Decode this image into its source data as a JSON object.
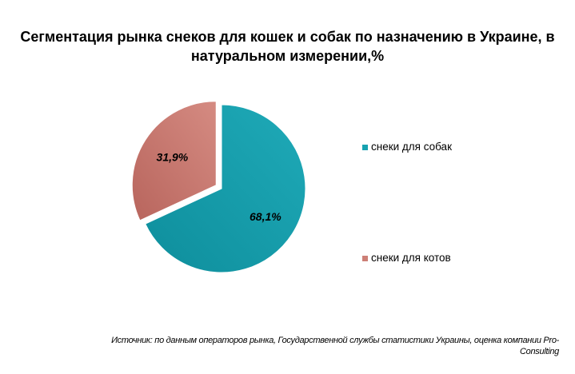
{
  "chart_data": {
    "type": "pie",
    "title_lines": [
      "Сегментация рынка снеков для кошек и собак по назначению в Украине, в",
      "натуральном измерении,%"
    ],
    "categories": [
      "снеки для собак",
      "снеки для котов"
    ],
    "values": [
      68.1,
      31.9
    ],
    "labels": [
      "68,1%",
      "31,9%"
    ],
    "colors": [
      "#17a2b0",
      "#cd7f76"
    ],
    "slice_gradients": [
      [
        "#0e8e9c",
        "#1faab8"
      ],
      [
        "#b8655d",
        "#d58b82"
      ]
    ],
    "exploded_slice": "снеки для котов",
    "legend_position": "right"
  },
  "source_lines": [
    "Источник: по данным операторов рынка, Государственной службы статистики Украины, оценка компании Pro-",
    "Consulting"
  ]
}
